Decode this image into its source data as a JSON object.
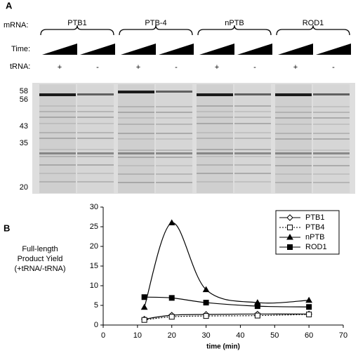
{
  "panel_a": {
    "label": "A",
    "row_labels": {
      "mrna": "mRNA:",
      "time": "Time:",
      "trna": "tRNA:"
    },
    "groups": [
      "PTB1",
      "PTB-4",
      "nPTB",
      "ROD1"
    ],
    "trna_signs": [
      "+",
      "-"
    ],
    "markers": [
      "58",
      "56",
      "43",
      "35",
      "20"
    ]
  },
  "panel_b_label": "B",
  "chart_data": {
    "type": "line",
    "ylabel": [
      "Full-length",
      "Product Yield",
      "(+tRNA/-tRNA)"
    ],
    "xlabel": "time (min)",
    "x": [
      12,
      20,
      30,
      45,
      60
    ],
    "xlim": [
      0,
      70
    ],
    "xticks": [
      0,
      10,
      20,
      30,
      40,
      50,
      60,
      70
    ],
    "ylim": [
      0,
      30
    ],
    "yticks": [
      0,
      5,
      10,
      15,
      20,
      25,
      30
    ],
    "legend": "right",
    "smooth": true,
    "series": [
      {
        "name": "PTB1",
        "color": "#000000",
        "marker": "diamond",
        "filled": false,
        "dashed": false,
        "values": [
          1.5,
          2.5,
          2.7,
          2.8,
          2.8
        ]
      },
      {
        "name": "PTB4",
        "color": "#000000",
        "marker": "square",
        "filled": false,
        "dashed": true,
        "values": [
          1.3,
          2.1,
          2.3,
          2.4,
          2.7
        ]
      },
      {
        "name": "nPTB",
        "color": "#000000",
        "marker": "triangle",
        "filled": true,
        "dashed": false,
        "values": [
          4.5,
          26,
          9,
          5.7,
          6.3
        ]
      },
      {
        "name": "ROD1",
        "color": "#000000",
        "marker": "square",
        "filled": true,
        "dashed": false,
        "values": [
          7.1,
          6.9,
          5.7,
          4.8,
          4.6
        ]
      }
    ]
  }
}
